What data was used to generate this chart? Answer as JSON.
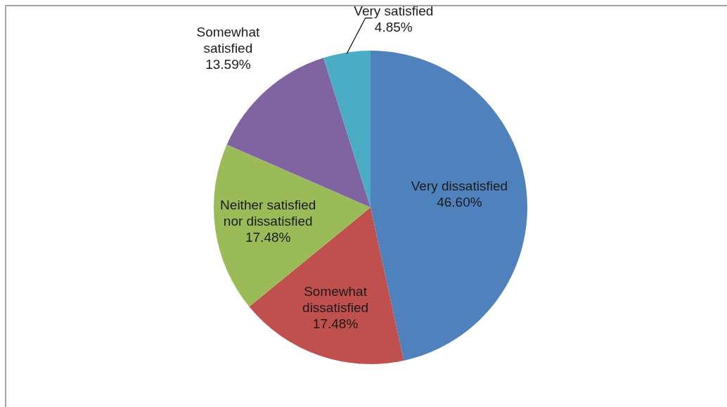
{
  "chart_data": {
    "type": "pie",
    "categories": [
      "Very dissatisfied",
      "Somewhat dissatisfied",
      "Neither satisfied nor dissatisfied",
      "Somewhat satisfied",
      "Very satisfied"
    ],
    "values": [
      46.6,
      17.48,
      17.48,
      13.59,
      4.85
    ],
    "colors": [
      "#4f81bd",
      "#c0504d",
      "#9bbb59",
      "#8064a2",
      "#4bacc6"
    ],
    "value_labels": [
      "46.60%",
      "17.48%",
      "17.48%",
      "13.59%",
      "4.85%"
    ],
    "legend": false
  }
}
